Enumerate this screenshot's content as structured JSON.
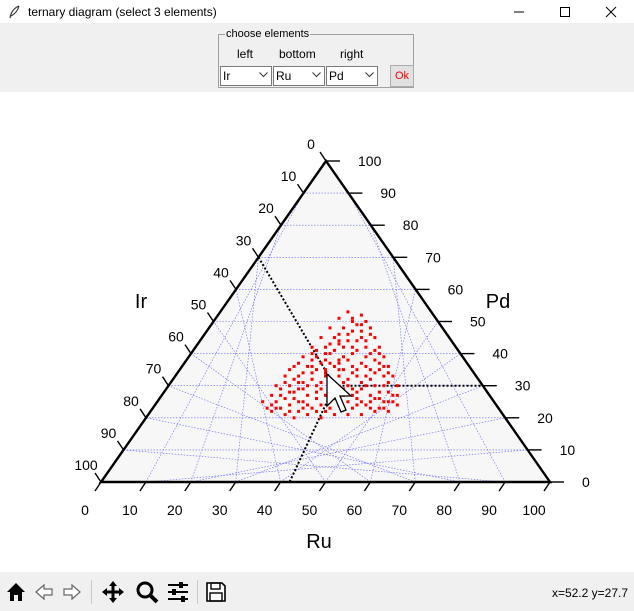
{
  "window": {
    "title": "ternary diagram (select 3 elements)",
    "icons": [
      "feather-icon",
      "minimize-icon",
      "maximize-icon",
      "close-icon"
    ]
  },
  "controls": {
    "group_label": "choose elements",
    "left_label": "left",
    "bottom_label": "bottom",
    "right_label": "right",
    "left_value": "Ir",
    "bottom_value": "Ru",
    "right_value": "Pd",
    "ok_label": "Ok"
  },
  "toolbar": {
    "icons": [
      "home-icon",
      "back-icon",
      "forward-icon",
      "pan-icon",
      "zoom-icon",
      "configure-icon",
      "save-icon"
    ],
    "coords": "x=52.2 y=27.7"
  },
  "chart_data": {
    "type": "scatter",
    "subtype": "ternary",
    "axis_labels": {
      "left": "Ir",
      "bottom": "Ru",
      "right": "Pd"
    },
    "ticks": [
      "0",
      "10",
      "20",
      "30",
      "40",
      "50",
      "60",
      "70",
      "80",
      "90",
      "100"
    ],
    "grid": true,
    "gridline_color": "#6666ff",
    "point_color": "#ff0000",
    "guide_lines": {
      "left": 30,
      "bottom": 42,
      "right": 30
    },
    "x_range": [
      0,
      100
    ],
    "y_range": [
      0,
      100
    ],
    "points_xy": [
      [
        38,
        22
      ],
      [
        41,
        21
      ],
      [
        44,
        22
      ],
      [
        47,
        23
      ],
      [
        50,
        22
      ],
      [
        53,
        24
      ],
      [
        56,
        23
      ],
      [
        59,
        24
      ],
      [
        62,
        23
      ],
      [
        39,
        25
      ],
      [
        42,
        24
      ],
      [
        45,
        25
      ],
      [
        48,
        26
      ],
      [
        51,
        25
      ],
      [
        54,
        27
      ],
      [
        57,
        26
      ],
      [
        60,
        27
      ],
      [
        63,
        25
      ],
      [
        40,
        27
      ],
      [
        43,
        28
      ],
      [
        46,
        27
      ],
      [
        49,
        29
      ],
      [
        52,
        28
      ],
      [
        55,
        30
      ],
      [
        58,
        29
      ],
      [
        61,
        30
      ],
      [
        64,
        28
      ],
      [
        42,
        30
      ],
      [
        45,
        31
      ],
      [
        48,
        30
      ],
      [
        51,
        32
      ],
      [
        54,
        31
      ],
      [
        57,
        33
      ],
      [
        60,
        32
      ],
      [
        63,
        33
      ],
      [
        44,
        33
      ],
      [
        47,
        34
      ],
      [
        50,
        33
      ],
      [
        53,
        35
      ],
      [
        56,
        34
      ],
      [
        59,
        36
      ],
      [
        62,
        35
      ],
      [
        46,
        36
      ],
      [
        49,
        37
      ],
      [
        52,
        36
      ],
      [
        55,
        38
      ],
      [
        58,
        37
      ],
      [
        61,
        38
      ],
      [
        48,
        39
      ],
      [
        51,
        40
      ],
      [
        54,
        39
      ],
      [
        57,
        41
      ],
      [
        60,
        40
      ],
      [
        50,
        42
      ],
      [
        53,
        43
      ],
      [
        56,
        42
      ],
      [
        59,
        44
      ],
      [
        52,
        45
      ],
      [
        55,
        46
      ],
      [
        58,
        45
      ],
      [
        54,
        48
      ],
      [
        57,
        49
      ],
      [
        56,
        51
      ],
      [
        37,
        23
      ],
      [
        40,
        23
      ],
      [
        43,
        20
      ],
      [
        46,
        21
      ],
      [
        49,
        20
      ],
      [
        52,
        21
      ],
      [
        55,
        21
      ],
      [
        58,
        21
      ],
      [
        61,
        22
      ],
      [
        64,
        22
      ],
      [
        66,
        24
      ],
      [
        65,
        27
      ],
      [
        66,
        30
      ],
      [
        65,
        33
      ],
      [
        64,
        36
      ],
      [
        63,
        39
      ],
      [
        62,
        42
      ],
      [
        61,
        45
      ],
      [
        60,
        48
      ],
      [
        59,
        50
      ],
      [
        58,
        52
      ],
      [
        55,
        53
      ],
      [
        53,
        51
      ],
      [
        51,
        48
      ],
      [
        49,
        45
      ],
      [
        47,
        42
      ],
      [
        45,
        39
      ],
      [
        43,
        36
      ],
      [
        41,
        33
      ],
      [
        39,
        30
      ],
      [
        38,
        27
      ],
      [
        36,
        25
      ],
      [
        41,
        26
      ],
      [
        44,
        29
      ],
      [
        47,
        32
      ],
      [
        50,
        35
      ],
      [
        53,
        38
      ],
      [
        56,
        40
      ],
      [
        59,
        42
      ],
      [
        62,
        37
      ],
      [
        63,
        30
      ],
      [
        61,
        26
      ],
      [
        58,
        25
      ],
      [
        55,
        25
      ],
      [
        52,
        26
      ],
      [
        49,
        24
      ],
      [
        46,
        24
      ],
      [
        43,
        26
      ],
      [
        40,
        29
      ],
      [
        43,
        32
      ],
      [
        46,
        30
      ],
      [
        49,
        31
      ],
      [
        52,
        30
      ],
      [
        55,
        32
      ],
      [
        58,
        31
      ],
      [
        61,
        34
      ],
      [
        59,
        33
      ],
      [
        56,
        36
      ],
      [
        53,
        37
      ],
      [
        50,
        38
      ],
      [
        47,
        40
      ],
      [
        52,
        41
      ],
      [
        55,
        44
      ],
      [
        58,
        47
      ],
      [
        57,
        44
      ],
      [
        54,
        42
      ],
      [
        51,
        43
      ],
      [
        48,
        35
      ],
      [
        45,
        34
      ],
      [
        42,
        35
      ],
      [
        44,
        37
      ],
      [
        47,
        38
      ],
      [
        50,
        40
      ],
      [
        53,
        46
      ],
      [
        56,
        47
      ],
      [
        59,
        39
      ],
      [
        62,
        40
      ],
      [
        64,
        34
      ],
      [
        65,
        25
      ],
      [
        63,
        23
      ],
      [
        60,
        25
      ],
      [
        57,
        28
      ],
      [
        54,
        29
      ],
      [
        51,
        29
      ],
      [
        48,
        28
      ],
      [
        45,
        29
      ],
      [
        42,
        28
      ],
      [
        39,
        23
      ],
      [
        42,
        22
      ],
      [
        45,
        23
      ],
      [
        48,
        22
      ],
      [
        51,
        23
      ],
      [
        54,
        23
      ],
      [
        57,
        24
      ],
      [
        60,
        23
      ],
      [
        62,
        28
      ],
      [
        59,
        30
      ],
      [
        56,
        29
      ],
      [
        53,
        33
      ],
      [
        50,
        34
      ],
      [
        47,
        36
      ],
      [
        44,
        31
      ],
      [
        41,
        31
      ],
      [
        60,
        35
      ],
      [
        57,
        35
      ],
      [
        54,
        35
      ],
      [
        51,
        37
      ],
      [
        48,
        41
      ],
      [
        53,
        44
      ],
      [
        56,
        50
      ],
      [
        58,
        49
      ],
      [
        60,
        46
      ],
      [
        61,
        41
      ],
      [
        63,
        36
      ],
      [
        64,
        31
      ],
      [
        66,
        27
      ],
      [
        64,
        25
      ],
      [
        38,
        24
      ],
      [
        44,
        25
      ],
      [
        50,
        27
      ],
      [
        56,
        27
      ],
      [
        62,
        26
      ]
    ]
  }
}
